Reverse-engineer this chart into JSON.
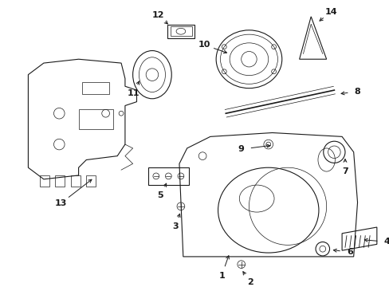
{
  "background_color": "#ffffff",
  "line_color": "#1a1a1a",
  "fig_width": 4.89,
  "fig_height": 3.6,
  "dpi": 100,
  "lw_main": 0.8,
  "lw_thin": 0.5,
  "lw_thick": 1.2
}
